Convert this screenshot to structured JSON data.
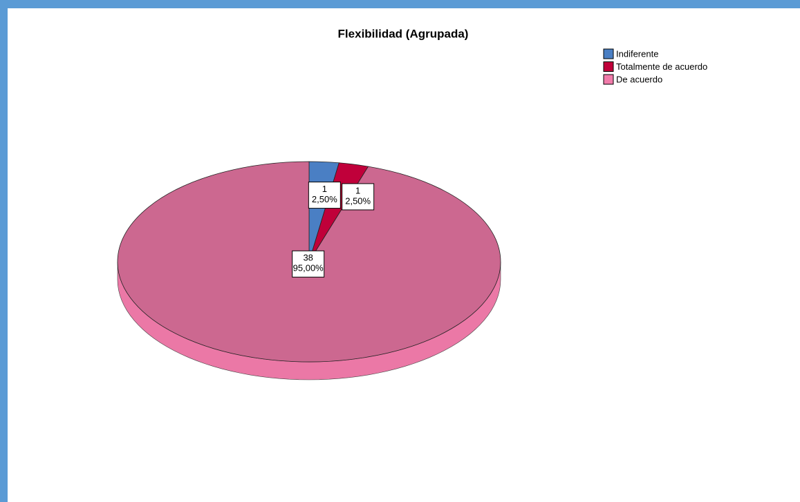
{
  "chart_data": {
    "type": "pie",
    "title": "Flexibilidad (Agrupada)",
    "categories": [
      "Indiferente",
      "Totalmente de acuerdo",
      "De acuerdo"
    ],
    "counts": [
      1,
      1,
      38
    ],
    "values": [
      2.5,
      2.5,
      95
    ],
    "value_labels": [
      "2,50%",
      "2,50%",
      "95,00%"
    ],
    "colors": [
      "#4a7fc4",
      "#c0003a",
      "#cc6890"
    ],
    "legend": "upper right"
  }
}
